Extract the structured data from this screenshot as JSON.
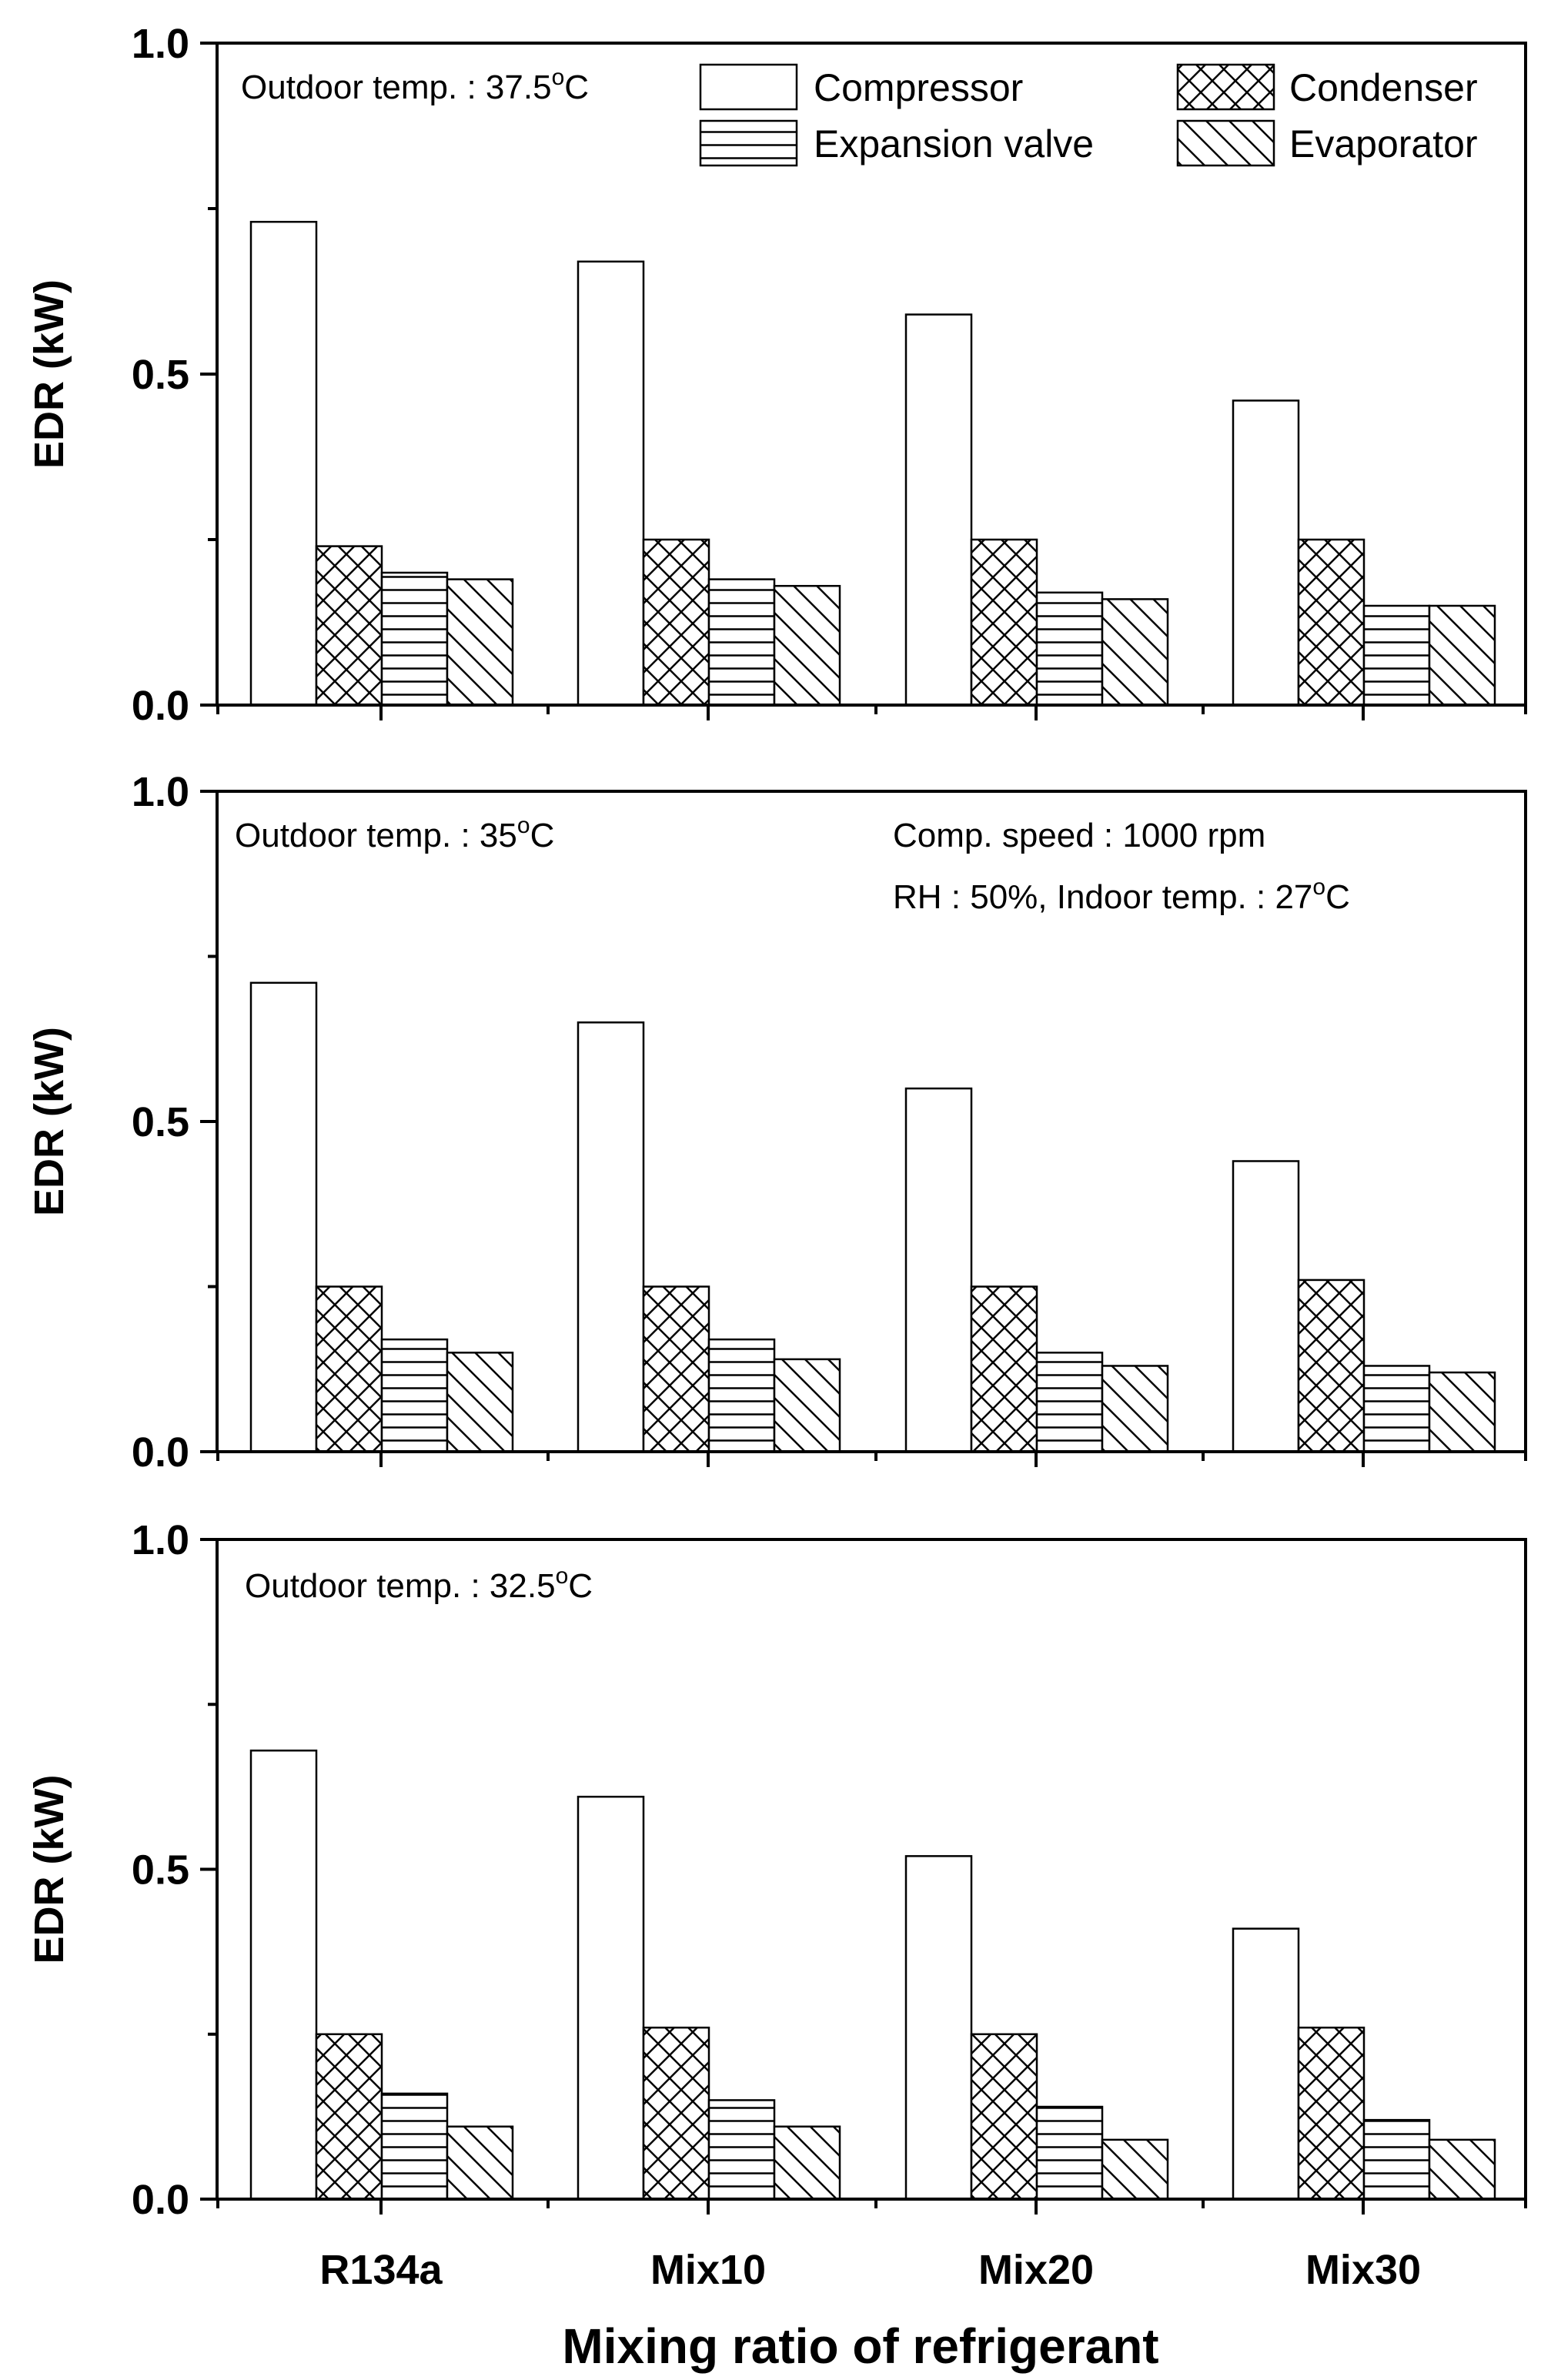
{
  "figure": {
    "xlabel": "Mixing ratio of refrigerant"
  },
  "chart_data": [
    {
      "type": "bar",
      "title": "",
      "xlabel": "Mixing ratio of refrigerant",
      "ylabel": "EDR (kW)",
      "ylim": [
        0,
        1.0
      ],
      "yticks": [
        "0.0",
        "0.5",
        "1.0"
      ],
      "categories": [
        "R134a",
        "Mix10",
        "Mix20",
        "Mix30"
      ],
      "annotations": [
        "Outdoor temp. : 37.5°C"
      ],
      "legend": [
        "Compressor",
        "Condenser",
        "Expansion valve",
        "Evaporator"
      ],
      "legend_position": "top-right",
      "series": [
        {
          "name": "Compressor",
          "values": [
            0.73,
            0.67,
            0.59,
            0.46
          ]
        },
        {
          "name": "Condenser",
          "values": [
            0.24,
            0.25,
            0.25,
            0.25
          ]
        },
        {
          "name": "Expansion valve",
          "values": [
            0.2,
            0.19,
            0.17,
            0.15
          ]
        },
        {
          "name": "Evaporator",
          "values": [
            0.19,
            0.18,
            0.16,
            0.15
          ]
        }
      ]
    },
    {
      "type": "bar",
      "title": "",
      "xlabel": "Mixing ratio of refrigerant",
      "ylabel": "EDR (kW)",
      "ylim": [
        0,
        1.0
      ],
      "yticks": [
        "0.0",
        "0.5",
        "1.0"
      ],
      "categories": [
        "R134a",
        "Mix10",
        "Mix20",
        "Mix30"
      ],
      "annotations": [
        "Outdoor temp. : 35°C",
        "Comp. speed : 1000 rpm",
        "RH : 50%, Indoor temp. : 27°C"
      ],
      "series": [
        {
          "name": "Compressor",
          "values": [
            0.71,
            0.65,
            0.55,
            0.44
          ]
        },
        {
          "name": "Condenser",
          "values": [
            0.25,
            0.25,
            0.25,
            0.26
          ]
        },
        {
          "name": "Expansion valve",
          "values": [
            0.17,
            0.17,
            0.15,
            0.13
          ]
        },
        {
          "name": "Evaporator",
          "values": [
            0.15,
            0.14,
            0.13,
            0.12
          ]
        }
      ]
    },
    {
      "type": "bar",
      "title": "",
      "xlabel": "Mixing ratio of refrigerant",
      "ylabel": "EDR (kW)",
      "ylim": [
        0,
        1.0
      ],
      "yticks": [
        "0.0",
        "0.5",
        "1.0"
      ],
      "categories": [
        "R134a",
        "Mix10",
        "Mix20",
        "Mix30"
      ],
      "annotations": [
        "Outdoor temp. : 32.5°C"
      ],
      "series": [
        {
          "name": "Compressor",
          "values": [
            0.68,
            0.61,
            0.52,
            0.41
          ]
        },
        {
          "name": "Condenser",
          "values": [
            0.25,
            0.26,
            0.25,
            0.26
          ]
        },
        {
          "name": "Expansion valve",
          "values": [
            0.16,
            0.15,
            0.14,
            0.12
          ]
        },
        {
          "name": "Evaporator",
          "values": [
            0.11,
            0.11,
            0.09,
            0.09
          ]
        }
      ]
    }
  ]
}
